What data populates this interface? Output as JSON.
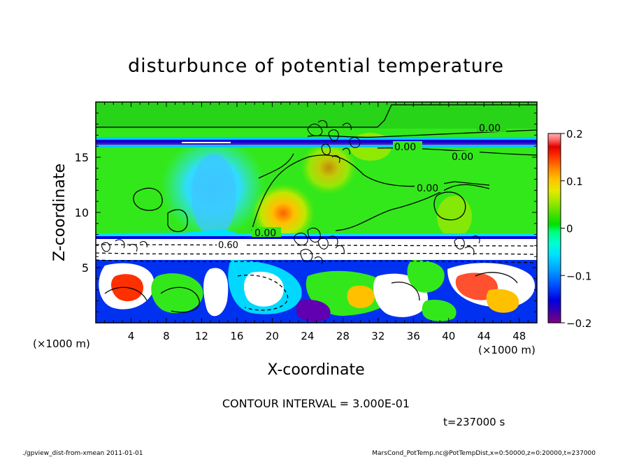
{
  "chart_data": {
    "type": "heatmap",
    "title": "disturbunce of potential temperature",
    "xlabel": "X-coordinate",
    "ylabel": "Z-coordinate",
    "x_unit": "(×1000 m)",
    "x_unit_right": "(×1000 m)",
    "xlim": [
      0,
      50
    ],
    "ylim": [
      0,
      20
    ],
    "x_ticks": [
      "4",
      "8",
      "12",
      "16",
      "20",
      "24",
      "28",
      "32",
      "36",
      "40",
      "44",
      "48"
    ],
    "y_ticks": [
      "5",
      "10",
      "15"
    ],
    "colorbar": {
      "range": [
        -0.2,
        0.2
      ],
      "tick_labels": [
        "0.2",
        "0.1",
        "0",
        "−0.1",
        "−0.2"
      ],
      "colors": [
        "#800080",
        "#3a00a8",
        "#0000e0",
        "#0050ff",
        "#00a0ff",
        "#00e0ff",
        "#00ffd0",
        "#00ff80",
        "#00e000",
        "#50e000",
        "#a0e800",
        "#e8e800",
        "#ffc000",
        "#ff8000",
        "#ff3000",
        "#e00000",
        "#ff7070",
        "#ffb0b0"
      ]
    },
    "contour_labels": [
      "0.00",
      "0.00",
      "0.00",
      "0.00",
      "0.00",
      "0.60"
    ],
    "contour_interval_text": "CONTOUR INTERVAL = 3.000E-01",
    "time_text": "t=237000 s"
  },
  "footer": {
    "left": "./gpview_dist-from-xmean 2011-01-01",
    "right": "MarsCond_PotTemp.nc@PotTempDist,x=0:50000,z=0:20000,t=237000"
  }
}
